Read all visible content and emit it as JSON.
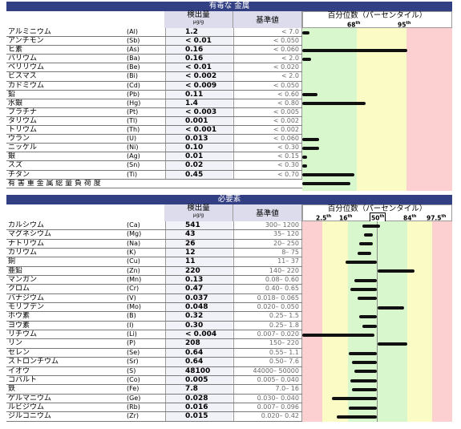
{
  "toxic": {
    "title": "有毒な 金属",
    "measured_label": "検出量",
    "unit": "µg/g",
    "reference_label": "基準値",
    "percentile_label": "百分位数（パーセンタイル）",
    "markers": [
      "68th",
      "95th"
    ],
    "rows": [
      {
        "name": "アルミニウム",
        "symbol": "(Al)",
        "value": "1.2",
        "ref": "<  7.0",
        "bar": [
          0,
          0.05
        ]
      },
      {
        "name": "アンチモン",
        "symbol": "(Sb)",
        "value": "< 0.01",
        "ref": "<  0.050",
        "bar": null
      },
      {
        "name": "ヒ素",
        "symbol": "(As)",
        "value": "0.16",
        "ref": "<  0.060",
        "bar": [
          0,
          0.7
        ]
      },
      {
        "name": "バリウム",
        "symbol": "(Ba)",
        "value": "0.16",
        "ref": "<  2.0",
        "bar": [
          0,
          0.06
        ]
      },
      {
        "name": "ベリリウム",
        "symbol": "(Be)",
        "value": "< 0.01",
        "ref": "<  0.020",
        "bar": null
      },
      {
        "name": "ビスマス",
        "symbol": "(Bi)",
        "value": "< 0.002",
        "ref": "<  2.0",
        "bar": null
      },
      {
        "name": "カドミウム",
        "symbol": "(Cd)",
        "value": "< 0.009",
        "ref": "<  0.050",
        "bar": null
      },
      {
        "name": "鉛",
        "symbol": "(Pb)",
        "value": "0.11",
        "ref": "<  0.60",
        "bar": [
          0,
          0.1
        ]
      },
      {
        "name": "水銀",
        "symbol": "(Hg)",
        "value": "1.4",
        "ref": "<  0.80",
        "bar": [
          0,
          0.42
        ]
      },
      {
        "name": "プラチナ",
        "symbol": "(Pt)",
        "value": "< 0.003",
        "ref": "<  0.005",
        "bar": null
      },
      {
        "name": "タリウム",
        "symbol": "(Tl)",
        "value": "0.001",
        "ref": "<  0.002",
        "bar": null
      },
      {
        "name": "トリウム",
        "symbol": "(Th)",
        "value": "< 0.001",
        "ref": "<  0.002",
        "bar": null
      },
      {
        "name": "ウラン",
        "symbol": "(U)",
        "value": "0.013",
        "ref": "<  0.060",
        "bar": [
          0,
          0.11
        ]
      },
      {
        "name": "ニッケル",
        "symbol": "(Ni)",
        "value": "0.10",
        "ref": "<  0.30",
        "bar": [
          0,
          0.11
        ]
      },
      {
        "name": "銀",
        "symbol": "(Ag)",
        "value": "0.01",
        "ref": "<  0.15",
        "bar": [
          0,
          0.03
        ]
      },
      {
        "name": "スズ",
        "symbol": "(Sn)",
        "value": "0.02",
        "ref": "<  0.30",
        "bar": [
          0,
          0.03
        ]
      },
      {
        "name": "チタン",
        "symbol": "(Ti)",
        "value": "0.45",
        "ref": "<  0.70",
        "bar": [
          0,
          0.35
        ]
      }
    ],
    "footer": "有 害 重 金 属 総 量  負 荷 度",
    "footer_bar": [
      0,
      0.32
    ]
  },
  "essential": {
    "title": "必要素",
    "measured_label": "検出量",
    "unit": "µg/g",
    "reference_label": "基準値",
    "percentile_label": "百分位数（パーセンタイル）",
    "markers": [
      "2.5th",
      "16th",
      "50th",
      "84th",
      "97.5th"
    ],
    "rows": [
      {
        "name": "カルシウム",
        "symbol": "(Ca)",
        "value": "541",
        "ref": "300–  1200",
        "bar": [
          0.4,
          0.52
        ]
      },
      {
        "name": "マグネシウム",
        "symbol": "(Mg)",
        "value": "43",
        "ref": "35–  120",
        "bar": [
          0.41,
          0.47
        ]
      },
      {
        "name": "ナトリウム",
        "symbol": "(Na)",
        "value": "26",
        "ref": "20–  250",
        "bar": [
          0.38,
          0.47
        ]
      },
      {
        "name": "カリウム",
        "symbol": "(K)",
        "value": "12",
        "ref": "8–  75",
        "bar": [
          0.37,
          0.46
        ]
      },
      {
        "name": "銅",
        "symbol": "(Cu)",
        "value": "11",
        "ref": "11–  37",
        "bar": [
          0.29,
          0.5
        ]
      },
      {
        "name": "亜鉛",
        "symbol": "(Zn)",
        "value": "220",
        "ref": "140–  220",
        "bar": [
          0.5,
          0.75
        ]
      },
      {
        "name": "マンガン",
        "symbol": "(Mn)",
        "value": "0.13",
        "ref": "0.08–  0.60",
        "bar": [
          0.35,
          0.5
        ]
      },
      {
        "name": "クロム",
        "symbol": "(Cr)",
        "value": "0.47",
        "ref": "0.40–  0.65",
        "bar": [
          0.32,
          0.5
        ]
      },
      {
        "name": "バナジウム",
        "symbol": "(V)",
        "value": "0.037",
        "ref": "0.018–  0.065",
        "bar": [
          0.37,
          0.5
        ]
      },
      {
        "name": "モリブデン",
        "symbol": "(Mo)",
        "value": "0.048",
        "ref": "0.020–  0.050",
        "bar": [
          0.5,
          0.68
        ]
      },
      {
        "name": "ホウ素",
        "symbol": "(B)",
        "value": "0.32",
        "ref": "0.25–  1.5",
        "bar": [
          0.38,
          0.5
        ]
      },
      {
        "name": "ヨウ素",
        "symbol": "(I)",
        "value": "0.30",
        "ref": "0.25–  1.8",
        "bar": [
          0.4,
          0.5
        ]
      },
      {
        "name": "リチウム",
        "symbol": "(Li)",
        "value": "< 0.004",
        "ref": "0.007–  0.020",
        "bar": [
          0,
          0.48
        ]
      },
      {
        "name": "リン",
        "symbol": "(P)",
        "value": "208",
        "ref": "150–  220",
        "bar": [
          0.5,
          0.7
        ]
      },
      {
        "name": "セレン",
        "symbol": "(Se)",
        "value": "0.64",
        "ref": "0.55–  1.1",
        "bar": [
          0.31,
          0.5
        ]
      },
      {
        "name": "ストロンチウム",
        "symbol": "(Sr)",
        "value": "0.64",
        "ref": "0.50–  7.6",
        "bar": [
          0.33,
          0.5
        ]
      },
      {
        "name": "イオウ",
        "symbol": "(S)",
        "value": "48100",
        "ref": "44000–  50000",
        "bar": [
          0.35,
          0.5
        ]
      },
      {
        "name": "コバルト",
        "symbol": "(Co)",
        "value": "0.005",
        "ref": "0.005–  0.040",
        "bar": [
          0.32,
          0.5
        ]
      },
      {
        "name": "鉄",
        "symbol": "(Fe)",
        "value": "7.8",
        "ref": "7.0–  16",
        "bar": [
          0.33,
          0.5
        ]
      },
      {
        "name": "ゲルマニウム",
        "symbol": "(Ge)",
        "value": "0.028",
        "ref": "0.030–  0.040",
        "bar": [
          0.2,
          0.5
        ]
      },
      {
        "name": "ルビジウム",
        "symbol": "(Rb)",
        "value": "0.016",
        "ref": "0.007–  0.096",
        "bar": [
          0.31,
          0.5
        ]
      },
      {
        "name": "ジルコニウム",
        "symbol": "(Zr)",
        "value": "0.015",
        "ref": "0.020–  0.42",
        "bar": [
          0.23,
          0.5
        ]
      }
    ]
  },
  "colors": {
    "header_bg": "#323f82",
    "green": "#d9f7cc",
    "yellow": "#fbfbc6",
    "red": "#fcd0d0"
  }
}
